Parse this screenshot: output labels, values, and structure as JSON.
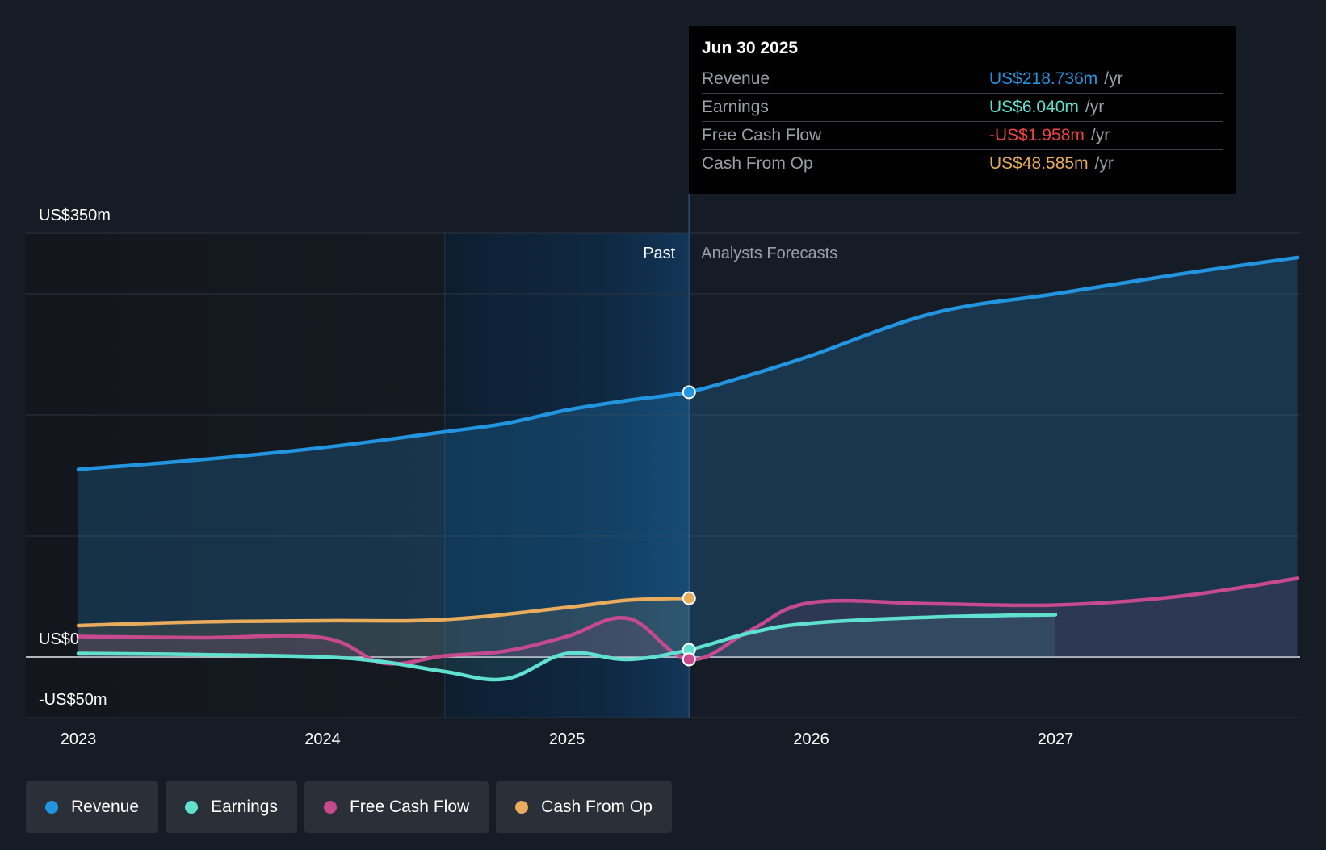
{
  "colors": {
    "background": "#161c26",
    "revenue": "#2394df",
    "earnings": "#60e1d0",
    "free_cash_flow": "#c74a8e",
    "cash_from_op": "#e8ac5c",
    "negative": "#ef4444",
    "grid": "#2c3440",
    "text": "#ffffff",
    "muted": "#9aa0a8"
  },
  "tooltip": {
    "date": "Jun 30 2025",
    "rows": [
      {
        "label": "Revenue",
        "value": "US$218.736m",
        "unit": "/yr",
        "color": "#2394df"
      },
      {
        "label": "Earnings",
        "value": "US$6.040m",
        "unit": "/yr",
        "color": "#60e1d0"
      },
      {
        "label": "Free Cash Flow",
        "value": "-US$1.958m",
        "unit": "/yr",
        "color": "#ef4444"
      },
      {
        "label": "Cash From Op",
        "value": "US$48.585m",
        "unit": "/yr",
        "color": "#e8ac5c"
      }
    ]
  },
  "legend": [
    {
      "label": "Revenue",
      "color": "#2394df"
    },
    {
      "label": "Earnings",
      "color": "#60e1d0"
    },
    {
      "label": "Free Cash Flow",
      "color": "#c74a8e"
    },
    {
      "label": "Cash From Op",
      "color": "#e8ac5c"
    }
  ],
  "chart_data": {
    "type": "line",
    "title": "",
    "xlabel": "",
    "ylabel": "",
    "ylim": [
      -50,
      350
    ],
    "xlim": [
      2022.9,
      2028.0
    ],
    "x_ticks": [
      2023,
      2024,
      2025,
      2026,
      2027
    ],
    "x_tick_labels": [
      "2023",
      "2024",
      "2025",
      "2026",
      "2027"
    ],
    "y_axis_labels": [
      {
        "value": 350,
        "label": "US$350m"
      },
      {
        "value": 0,
        "label": "US$0"
      },
      {
        "value": -50,
        "label": "-US$50m"
      }
    ],
    "y_gridlines": [
      350,
      300,
      200,
      100,
      0,
      -50
    ],
    "past_label": "Past",
    "forecast_label": "Analysts Forecasts",
    "past_highlight_start": 2024.5,
    "divider_x": 2025.5,
    "series": [
      {
        "name": "Revenue",
        "key": "revenue",
        "points": [
          [
            2023.0,
            155
          ],
          [
            2023.5,
            163
          ],
          [
            2024.0,
            173
          ],
          [
            2024.5,
            186
          ],
          [
            2024.75,
            193
          ],
          [
            2025.0,
            204
          ],
          [
            2025.25,
            212
          ],
          [
            2025.5,
            219
          ],
          [
            2025.75,
            233
          ],
          [
            2026.0,
            249
          ],
          [
            2026.5,
            284
          ],
          [
            2027.0,
            300
          ],
          [
            2027.5,
            316
          ],
          [
            2027.99,
            330
          ]
        ]
      },
      {
        "name": "Earnings",
        "key": "earnings",
        "points": [
          [
            2023.0,
            3
          ],
          [
            2023.5,
            2
          ],
          [
            2024.0,
            0
          ],
          [
            2024.25,
            -4
          ],
          [
            2024.5,
            -12
          ],
          [
            2024.75,
            -18
          ],
          [
            2025.0,
            3
          ],
          [
            2025.25,
            -2
          ],
          [
            2025.5,
            6
          ],
          [
            2025.75,
            20
          ],
          [
            2026.0,
            28
          ],
          [
            2026.5,
            33
          ],
          [
            2027.0,
            35
          ]
        ]
      },
      {
        "name": "Free Cash Flow",
        "key": "free_cash_flow",
        "points": [
          [
            2023.0,
            17
          ],
          [
            2023.5,
            16
          ],
          [
            2024.0,
            16
          ],
          [
            2024.25,
            -5
          ],
          [
            2024.5,
            1
          ],
          [
            2024.75,
            5
          ],
          [
            2025.0,
            17
          ],
          [
            2025.25,
            32
          ],
          [
            2025.5,
            -2
          ],
          [
            2025.75,
            22
          ],
          [
            2026.0,
            45
          ],
          [
            2026.5,
            44
          ],
          [
            2027.0,
            43
          ],
          [
            2027.5,
            50
          ],
          [
            2027.99,
            65
          ]
        ]
      },
      {
        "name": "Cash From Op",
        "key": "cash_from_op",
        "points": [
          [
            2023.0,
            26
          ],
          [
            2023.5,
            29
          ],
          [
            2024.0,
            30
          ],
          [
            2024.5,
            31
          ],
          [
            2025.0,
            41
          ],
          [
            2025.25,
            47
          ],
          [
            2025.5,
            48.6
          ]
        ]
      }
    ],
    "highlight_markers": [
      {
        "series": "revenue",
        "x": 2025.5,
        "y": 218.736
      },
      {
        "series": "cash_from_op",
        "x": 2025.5,
        "y": 48.585
      },
      {
        "series": "earnings",
        "x": 2025.5,
        "y": 6.04
      },
      {
        "series": "free_cash_flow",
        "x": 2025.5,
        "y": -1.958
      }
    ]
  }
}
